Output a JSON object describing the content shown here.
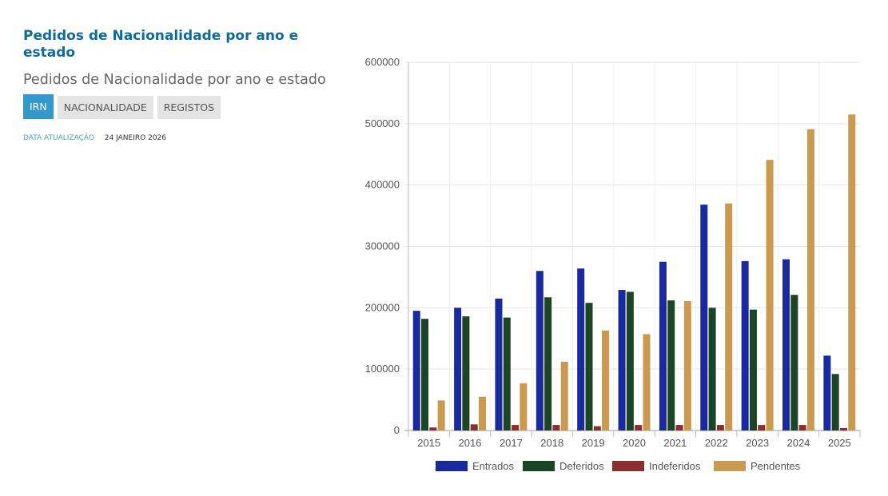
{
  "header": {
    "title": "Pedidos de Nacionalidade por ano e estado",
    "subtitle": "Pedidos de Nacionalidade por ano e estado",
    "tabs": [
      {
        "label": "IRN",
        "active": true
      },
      {
        "label": "NACIONALIDADE",
        "active": false
      },
      {
        "label": "REGISTOS",
        "active": false
      }
    ],
    "update_label": "DATA ATUALIZAÇÃO",
    "update_date": "24 JANEIRO 2026"
  },
  "chart_data": {
    "type": "bar",
    "title": "",
    "xlabel": "",
    "ylabel": "",
    "ylim": [
      0,
      600000
    ],
    "yticks": [
      "0",
      "100000",
      "200000",
      "300000",
      "400000",
      "500000",
      "600000"
    ],
    "categories": [
      "2015",
      "2016",
      "2017",
      "2018",
      "2019",
      "2020",
      "2021",
      "2022",
      "2023",
      "2024",
      "2025"
    ],
    "legend_position": "bottom",
    "grid": true,
    "series": [
      {
        "name": "Entrados",
        "color": "#1a2a9e",
        "values": [
          195000,
          200000,
          215000,
          260000,
          264000,
          229000,
          275000,
          368000,
          276000,
          279000,
          122000
        ]
      },
      {
        "name": "Deferidos",
        "color": "#1c4426",
        "values": [
          182000,
          186000,
          184000,
          217000,
          208000,
          226000,
          212000,
          200000,
          197000,
          221000,
          92000
        ]
      },
      {
        "name": "Indeferidos",
        "color": "#8b2e2e",
        "values": [
          5000,
          10000,
          9000,
          9000,
          7000,
          9000,
          9000,
          9000,
          9000,
          9000,
          4000
        ]
      },
      {
        "name": "Pendentes",
        "color": "#c99a50",
        "values": [
          49000,
          55000,
          77000,
          112000,
          163000,
          157000,
          211000,
          370000,
          441000,
          491000,
          515000
        ]
      }
    ]
  }
}
